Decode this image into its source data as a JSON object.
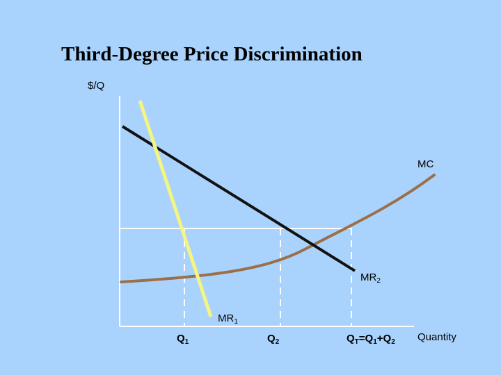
{
  "title": "Third-Degree Price Discrimination",
  "y_axis_label": "$/Q",
  "x_axis_label": "Quantity",
  "curves": {
    "mc": "MC",
    "mr2": {
      "base": "MR",
      "sub": "2"
    },
    "mr1": {
      "base": "MR",
      "sub": "1"
    }
  },
  "quantities": {
    "q1": {
      "base": "Q",
      "sub": "1"
    },
    "q2": {
      "base": "Q",
      "sub": "2"
    },
    "qt": {
      "p1": "Q",
      "s1": "T",
      "p2": "=Q",
      "s2": "1",
      "p3": "+Q",
      "s3": "2"
    }
  },
  "colors": {
    "background": "#a9d3fd",
    "mr1_line": "#f5f57f",
    "mr2_line": "#111111",
    "mc_curve": "#9b6f49",
    "guides": "#ffffff"
  }
}
